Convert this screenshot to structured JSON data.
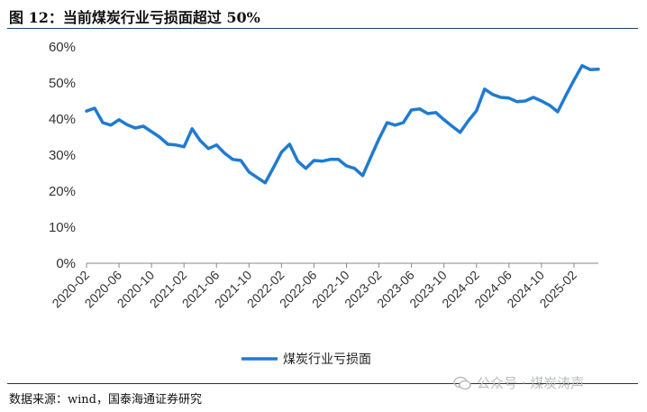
{
  "figure": {
    "title": "图 12：当前煤炭行业亏损面超过 50%",
    "source": "数据来源：wind，国泰海通证券研究",
    "watermark": "公众号 · 煤炭涛声",
    "watermark_icon": "wechat-icon"
  },
  "chart_data": {
    "type": "line",
    "title": "",
    "xlabel": "",
    "ylabel": "",
    "ylim": [
      0,
      60
    ],
    "yticks": [
      "0%",
      "10%",
      "20%",
      "30%",
      "40%",
      "50%",
      "60%"
    ],
    "grid": false,
    "legend_position": "bottom",
    "x_tick_labels": [
      "2020-02",
      "2020-06",
      "2020-10",
      "2021-02",
      "2021-06",
      "2021-10",
      "2022-02",
      "2022-06",
      "2022-10",
      "2023-02",
      "2023-06",
      "2023-10",
      "2024-02",
      "2024-06",
      "2024-10",
      "2025-02"
    ],
    "x": [
      "2020-02",
      "2020-03",
      "2020-04",
      "2020-05",
      "2020-06",
      "2020-07",
      "2020-08",
      "2020-09",
      "2020-10",
      "2020-11",
      "2020-12",
      "2021-01",
      "2021-02",
      "2021-03",
      "2021-04",
      "2021-05",
      "2021-06",
      "2021-07",
      "2021-08",
      "2021-09",
      "2021-10",
      "2021-11",
      "2021-12",
      "2022-01",
      "2022-02",
      "2022-03",
      "2022-04",
      "2022-05",
      "2022-06",
      "2022-07",
      "2022-08",
      "2022-09",
      "2022-10",
      "2022-11",
      "2022-12",
      "2023-01",
      "2023-02",
      "2023-03",
      "2023-04",
      "2023-05",
      "2023-06",
      "2023-07",
      "2023-08",
      "2023-09",
      "2023-10",
      "2023-11",
      "2023-12",
      "2024-01",
      "2024-02",
      "2024-03",
      "2024-04",
      "2024-05",
      "2024-06",
      "2024-07",
      "2024-08",
      "2024-09",
      "2024-10",
      "2024-11",
      "2024-12",
      "2025-01",
      "2025-02",
      "2025-03",
      "2025-04",
      "2025-05"
    ],
    "series": [
      {
        "name": "煤炭行业亏损面",
        "color": "#1f7bd0",
        "values": [
          42.2,
          43.0,
          39.0,
          38.3,
          39.8,
          38.4,
          37.5,
          38.0,
          36.5,
          35.0,
          33.0,
          32.8,
          32.3,
          37.3,
          34.0,
          31.8,
          32.8,
          30.5,
          28.8,
          28.5,
          25.3,
          23.8,
          22.3,
          26.5,
          30.8,
          33.0,
          28.3,
          26.3,
          28.5,
          28.3,
          28.8,
          28.8,
          27.0,
          26.3,
          24.3,
          29.5,
          34.5,
          39.0,
          38.3,
          39.0,
          42.5,
          42.8,
          41.5,
          41.8,
          39.8,
          38.0,
          36.3,
          39.5,
          42.3,
          48.3,
          46.8,
          46.0,
          45.8,
          44.8,
          45.0,
          46.0,
          45.0,
          43.8,
          42.0,
          46.5,
          50.8,
          54.8,
          53.7,
          53.8
        ]
      }
    ]
  }
}
